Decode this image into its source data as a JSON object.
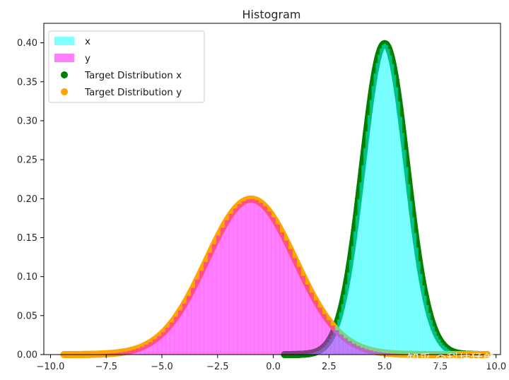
{
  "chart_data": {
    "type": "histogram",
    "title": "Histogram",
    "xlabel": "",
    "ylabel": "",
    "xlim": [
      -10.3,
      10.2
    ],
    "ylim": [
      0,
      0.425
    ],
    "xticks": [
      -10.0,
      -7.5,
      -5.0,
      -2.5,
      0.0,
      2.5,
      5.0,
      7.5,
      10.0
    ],
    "xtick_labels": [
      "−10.0",
      "−7.5",
      "−5.0",
      "−2.5",
      "0.0",
      "2.5",
      "5.0",
      "7.5",
      "10.0"
    ],
    "yticks": [
      0.0,
      0.05,
      0.1,
      0.15,
      0.2,
      0.25,
      0.3,
      0.35,
      0.4
    ],
    "ytick_labels": [
      "0.00",
      "0.05",
      "0.10",
      "0.15",
      "0.20",
      "0.25",
      "0.30",
      "0.35",
      "0.40"
    ],
    "grid": false,
    "legend_position": "top-left",
    "series": [
      {
        "name": "x",
        "kind": "histogram",
        "color": "#00ffff",
        "alpha": 0.5,
        "distribution": "normal",
        "mean": 5.0,
        "std": 1.0,
        "range": [
          0.5,
          9.6
        ],
        "peak_density": 0.4
      },
      {
        "name": "y",
        "kind": "histogram",
        "color": "#ff00ff",
        "alpha": 0.5,
        "distribution": "normal",
        "mean": -1.0,
        "std": 2.0,
        "range": [
          -9.4,
          9.6
        ],
        "peak_density": 0.2
      },
      {
        "name": "Target Distribution x",
        "kind": "scatter",
        "color": "#008000",
        "distribution": "normal",
        "mean": 5.0,
        "std": 1.0,
        "range": [
          0.5,
          9.6
        ]
      },
      {
        "name": "Target Distribution y",
        "kind": "scatter",
        "color": "#ffa500",
        "distribution": "normal",
        "mean": -1.0,
        "std": 2.0,
        "range": [
          -9.4,
          9.6
        ]
      }
    ]
  },
  "watermark": "知乎 @科技猛兽"
}
